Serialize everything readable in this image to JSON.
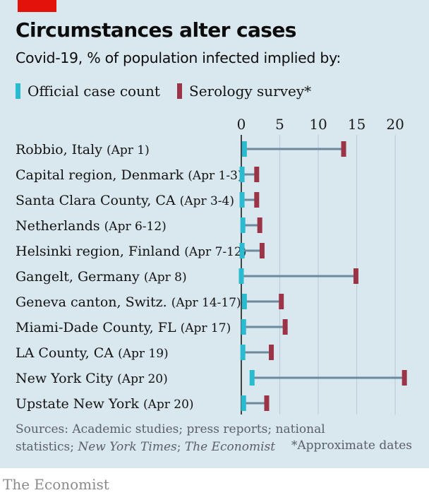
{
  "title": "Circumstances alter cases",
  "subtitle": "Covid-19, % of population infected implied by:",
  "legend": [
    {
      "label": "Official case count",
      "color": "#2bbbd1"
    },
    {
      "label": "Serology survey*",
      "color": "#9c3448"
    }
  ],
  "chart_data": {
    "type": "dumbbell",
    "xlim": [
      0,
      21
    ],
    "x_ticks": [
      "0",
      "5",
      "10",
      "15",
      "20"
    ],
    "grid": true,
    "legend_position": "top",
    "colors": {
      "official": "#2bbbd1",
      "serology": "#9c3448",
      "connector": "#6b8a9e",
      "grid": "#b9cbd6"
    },
    "series": [
      {
        "name": "Official case count",
        "key": "official"
      },
      {
        "name": "Serology survey*",
        "key": "serology"
      }
    ],
    "rows": [
      {
        "place": "Robbio, Italy",
        "dates": "(Apr 1)",
        "official": 0.4,
        "serology": 13.3
      },
      {
        "place": "Capital region, Denmark",
        "dates": "(Apr 1-3)",
        "official": 0.1,
        "serology": 2.0
      },
      {
        "place": "Santa Clara County, CA",
        "dates": "(Apr 3-4)",
        "official": 0.1,
        "serology": 2.0
      },
      {
        "place": "Netherlands",
        "dates": "(Apr 6-12)",
        "official": 0.2,
        "serology": 2.4
      },
      {
        "place": "Helsinki region, Finland",
        "dates": "(Apr 7-12)",
        "official": 0.1,
        "serology": 2.7
      },
      {
        "place": "Gangelt, Germany",
        "dates": "(Apr 8)",
        "official": 0.0,
        "serology": 14.9
      },
      {
        "place": "Geneva canton, Switz.",
        "dates": "(Apr 14-17)",
        "official": 0.4,
        "serology": 5.2
      },
      {
        "place": "Miami-Dade County, FL",
        "dates": "(Apr 17)",
        "official": 0.3,
        "serology": 5.7
      },
      {
        "place": "LA County, CA",
        "dates": "(Apr 19)",
        "official": 0.2,
        "serology": 3.9
      },
      {
        "place": "New York City",
        "dates": "(Apr 20)",
        "official": 1.4,
        "serology": 21.2
      },
      {
        "place": "Upstate New York",
        "dates": "(Apr 20)",
        "official": 0.3,
        "serology": 3.3
      }
    ]
  },
  "sources": {
    "text_1": "Sources: Academic studies; press reports; national",
    "text_2": "statistics; ",
    "nyt": "New York Times",
    "sep": "; ",
    "economist": "The Economist"
  },
  "note": "*Approximate dates",
  "brand": "The Economist"
}
